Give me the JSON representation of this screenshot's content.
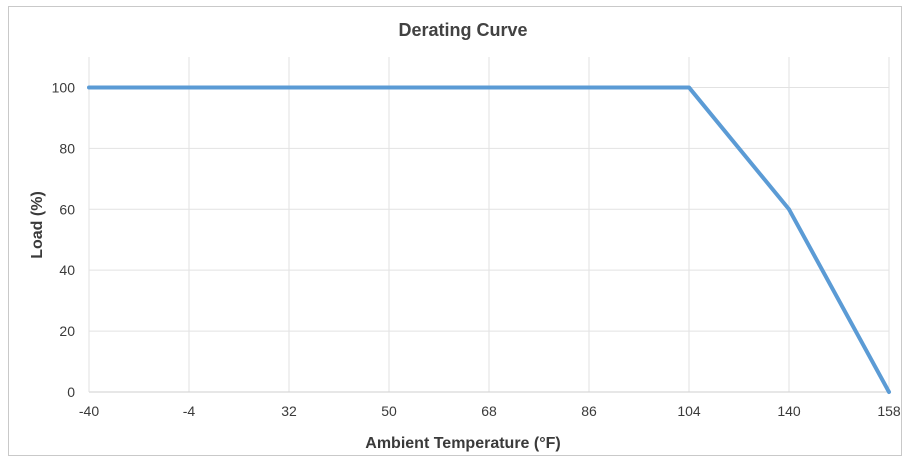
{
  "chart_data": {
    "type": "line",
    "title": "Derating Curve",
    "xlabel": "Ambient Temperature (°F)",
    "ylabel": "Load (%)",
    "categories": [
      "-40",
      "-4",
      "32",
      "50",
      "68",
      "86",
      "104",
      "140",
      "158"
    ],
    "x_ticks": [
      "-40",
      "-4",
      "32",
      "50",
      "68",
      "86",
      "104",
      "140",
      "158"
    ],
    "y_ticks": [
      "0",
      "20",
      "40",
      "60",
      "80",
      "100"
    ],
    "ylim": [
      0,
      110
    ],
    "grid": true,
    "series": [
      {
        "values": [
          100,
          100,
          100,
          100,
          100,
          100,
          100,
          60,
          0
        ],
        "color": "#5b9bd5"
      }
    ]
  }
}
